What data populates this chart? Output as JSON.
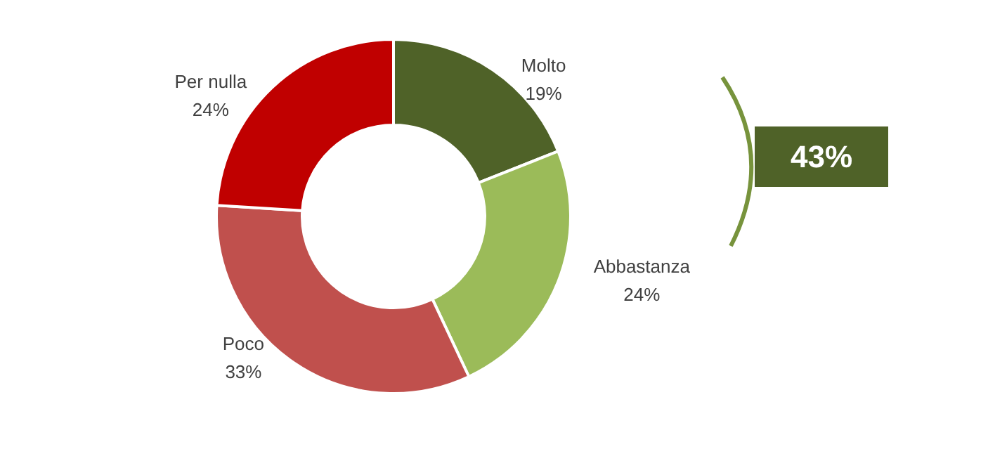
{
  "chart_data": {
    "type": "donut",
    "categories": [
      "Molto",
      "Abbastanza",
      "Poco",
      "Per nulla"
    ],
    "values": [
      19,
      24,
      33,
      24
    ],
    "colors": [
      "#4f6228",
      "#9bbb59",
      "#c0504d",
      "#c00000"
    ],
    "value_labels": [
      "19%",
      "24%",
      "33%",
      "24%"
    ],
    "annotations": [
      "43%"
    ]
  }
}
